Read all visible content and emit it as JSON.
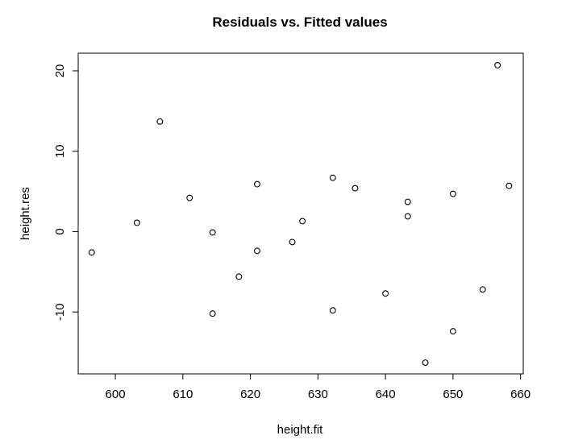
{
  "chart_data": {
    "type": "scatter",
    "title": "Residuals vs. Fitted values",
    "xlabel": "height.fit",
    "ylabel": "height.res",
    "xlim": [
      594.5,
      660.4
    ],
    "ylim": [
      -17.7,
      22.2
    ],
    "xticks": [
      600,
      610,
      620,
      630,
      640,
      650,
      660
    ],
    "yticks": [
      -10,
      0,
      10,
      20
    ],
    "grid": false,
    "marker": "open-circle",
    "points": [
      {
        "x": 596.5,
        "y": -2.6
      },
      {
        "x": 603.2,
        "y": 1.1
      },
      {
        "x": 606.6,
        "y": 13.7
      },
      {
        "x": 611.0,
        "y": 4.2
      },
      {
        "x": 614.4,
        "y": -0.1
      },
      {
        "x": 614.4,
        "y": -10.2
      },
      {
        "x": 618.3,
        "y": -5.6
      },
      {
        "x": 621.0,
        "y": 5.9
      },
      {
        "x": 621.0,
        "y": -2.4
      },
      {
        "x": 626.2,
        "y": -1.3
      },
      {
        "x": 627.7,
        "y": 1.3
      },
      {
        "x": 632.2,
        "y": 6.7
      },
      {
        "x": 632.2,
        "y": -9.8
      },
      {
        "x": 635.5,
        "y": 5.4
      },
      {
        "x": 640.0,
        "y": -7.7
      },
      {
        "x": 643.3,
        "y": 3.7
      },
      {
        "x": 643.3,
        "y": 1.9
      },
      {
        "x": 645.9,
        "y": -16.3
      },
      {
        "x": 650.0,
        "y": 4.7
      },
      {
        "x": 650.0,
        "y": -12.4
      },
      {
        "x": 654.4,
        "y": -7.2
      },
      {
        "x": 656.6,
        "y": 20.7
      },
      {
        "x": 658.3,
        "y": 5.7
      }
    ]
  }
}
